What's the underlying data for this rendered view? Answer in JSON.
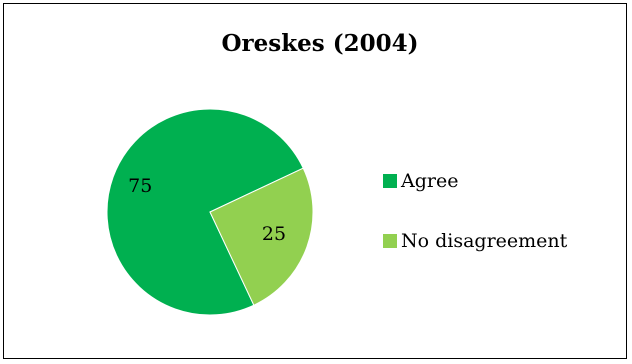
{
  "chart_data": {
    "type": "pie",
    "title": "Oreskes (2004)",
    "categories": [
      "Agree",
      "No disagreement"
    ],
    "values": [
      75,
      25
    ],
    "data_labels": [
      "75",
      "25"
    ],
    "colors": [
      "#00b050",
      "#92d050"
    ],
    "legend": "right"
  }
}
